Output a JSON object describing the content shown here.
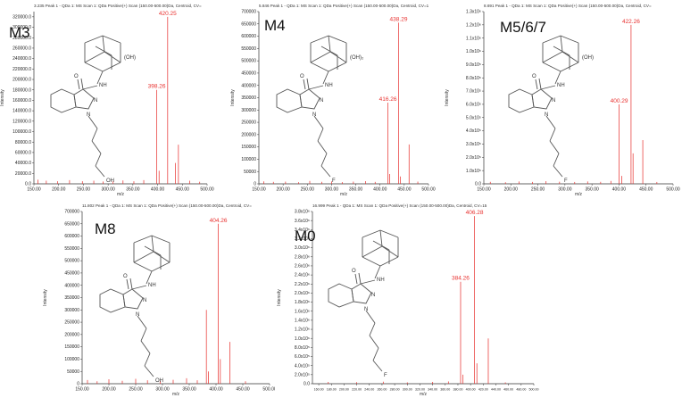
{
  "chart_data": [
    {
      "id": "p1",
      "type": "bar",
      "title": "3.235 Peak 1 - QDa 1: MS Scan 1: QDa Positive(+) Scan (150.00-500.00)Da, Centroid, CV=",
      "compound_label": "M3",
      "ylabel": "Intensity",
      "xlabel": "m/z",
      "xlim": [
        150,
        500
      ],
      "ylim": [
        0,
        330000
      ],
      "xticks": [
        150,
        200,
        250,
        300,
        350,
        400,
        450,
        500
      ],
      "xtick_labels": [
        "150.00",
        "200.00",
        "250.00",
        "300.00",
        "350.00",
        "400.00",
        "450.00",
        "500.00"
      ],
      "yticks": [
        0,
        20000,
        40000,
        60000,
        80000,
        100000,
        120000,
        140000,
        160000,
        180000,
        200000,
        220000,
        240000,
        260000,
        280000,
        300000,
        320000
      ],
      "ytick_labels": [
        "0.0",
        "20000.0",
        "40000.0",
        "60000.0",
        "80000.0",
        "100000.0",
        "120000.0",
        "140000.0",
        "160000.0",
        "180000.0",
        "200000.0",
        "220000.0",
        "240000.0",
        "260000.0",
        "280000.0",
        "300000.0",
        "320000.0"
      ],
      "substituents": [
        "(OH)",
        "OH"
      ],
      "peaks": [
        {
          "mz": 420.25,
          "intensity": 320000,
          "label": "420.25"
        },
        {
          "mz": 398.26,
          "intensity": 180000,
          "label": "398.26"
        },
        {
          "mz": 442,
          "intensity": 75000
        },
        {
          "mz": 436,
          "intensity": 40000
        },
        {
          "mz": 403,
          "intensity": 25000
        },
        {
          "mz": 158,
          "intensity": 8000
        },
        {
          "mz": 175,
          "intensity": 6000
        },
        {
          "mz": 198,
          "intensity": 5000
        },
        {
          "mz": 222,
          "intensity": 7000
        },
        {
          "mz": 248,
          "intensity": 5000
        },
        {
          "mz": 271,
          "intensity": 6000
        },
        {
          "mz": 290,
          "intensity": 4500
        },
        {
          "mz": 310,
          "intensity": 5000
        },
        {
          "mz": 330,
          "intensity": 6500
        },
        {
          "mz": 352,
          "intensity": 5000
        },
        {
          "mz": 372,
          "intensity": 7000
        },
        {
          "mz": 465,
          "intensity": 6000
        },
        {
          "mz": 485,
          "intensity": 4000
        }
      ]
    },
    {
      "id": "p2",
      "type": "bar",
      "title": "5.846 Peak 1 - QDa 1: MS Scan 1: QDa Positive(+) Scan (150.00-500.00)Da, Centroid, CV=1",
      "compound_label": "M4",
      "ylabel": "Intensity",
      "xlabel": "m/z",
      "xlim": [
        150,
        500
      ],
      "ylim": [
        0,
        700000
      ],
      "xticks": [
        150,
        200,
        250,
        300,
        350,
        400,
        450,
        500
      ],
      "xtick_labels": [
        "150.00",
        "200.00",
        "250.00",
        "300.00",
        "350.00",
        "400.00",
        "450.00",
        "500.00"
      ],
      "yticks": [
        0,
        50000,
        100000,
        150000,
        200000,
        250000,
        300000,
        350000,
        400000,
        450000,
        500000,
        550000,
        600000,
        650000,
        700000
      ],
      "ytick_labels": [
        "0",
        "50000",
        "100000",
        "150000",
        "200000",
        "250000",
        "300000",
        "350000",
        "400000",
        "450000",
        "500000",
        "550000",
        "600000",
        "650000",
        "700000"
      ],
      "substituents": [
        "(OH)₂",
        "F"
      ],
      "peaks": [
        {
          "mz": 438.29,
          "intensity": 655000,
          "label": "438.29"
        },
        {
          "mz": 416.26,
          "intensity": 330000,
          "label": "416.26"
        },
        {
          "mz": 460,
          "intensity": 160000
        },
        {
          "mz": 420,
          "intensity": 40000
        },
        {
          "mz": 442,
          "intensity": 30000
        },
        {
          "mz": 160,
          "intensity": 10000
        },
        {
          "mz": 180,
          "intensity": 8000
        },
        {
          "mz": 205,
          "intensity": 9000
        },
        {
          "mz": 232,
          "intensity": 7000
        },
        {
          "mz": 255,
          "intensity": 12000
        },
        {
          "mz": 280,
          "intensity": 8000
        },
        {
          "mz": 300,
          "intensity": 10000
        },
        {
          "mz": 322,
          "intensity": 7000
        },
        {
          "mz": 345,
          "intensity": 9000
        },
        {
          "mz": 370,
          "intensity": 11000
        },
        {
          "mz": 390,
          "intensity": 8000
        },
        {
          "mz": 478,
          "intensity": 9000
        }
      ]
    },
    {
      "id": "p3",
      "type": "bar",
      "title": "8.691 Peak 1 - QDa 1: MS Scan 1: QDa Positive(+) Scan (150.00-500.00)Da, Centroid, CV=",
      "compound_label": "M5/6/7",
      "ylabel": "Intensity",
      "xlabel": "m/z",
      "xlim": [
        150,
        500
      ],
      "ylim": [
        0,
        1300000
      ],
      "xticks": [
        150,
        200,
        250,
        300,
        350,
        400,
        450,
        500
      ],
      "xtick_labels": [
        "150.00",
        "200.00",
        "250.00",
        "300.00",
        "350.00",
        "400.00",
        "450.00",
        "500.00"
      ],
      "yticks": [
        0,
        100000,
        200000,
        300000,
        400000,
        500000,
        600000,
        700000,
        800000,
        900000,
        1000000,
        1100000,
        1200000,
        1300000
      ],
      "ytick_labels": [
        "0.0",
        "1.0x10⁵",
        "2.0x10⁵",
        "3.0x10⁵",
        "4.0x10⁵",
        "5.0x10⁵",
        "6.0x10⁵",
        "7.0x10⁵",
        "8.0x10⁵",
        "9.0x10⁵",
        "1.0x10⁶",
        "1.1x10⁶",
        "1.2x10⁶",
        "1.3x10⁶"
      ],
      "substituents": [
        "(OH)",
        "F"
      ],
      "peaks": [
        {
          "mz": 422.26,
          "intensity": 1200000,
          "label": "422.26"
        },
        {
          "mz": 400.29,
          "intensity": 600000,
          "label": "400.29"
        },
        {
          "mz": 444,
          "intensity": 330000
        },
        {
          "mz": 426,
          "intensity": 230000
        },
        {
          "mz": 405,
          "intensity": 60000
        },
        {
          "mz": 162,
          "intensity": 15000
        },
        {
          "mz": 190,
          "intensity": 12000
        },
        {
          "mz": 215,
          "intensity": 18000
        },
        {
          "mz": 240,
          "intensity": 14000
        },
        {
          "mz": 265,
          "intensity": 20000
        },
        {
          "mz": 290,
          "intensity": 16000
        },
        {
          "mz": 318,
          "intensity": 14000
        },
        {
          "mz": 342,
          "intensity": 18000
        },
        {
          "mz": 366,
          "intensity": 15000
        },
        {
          "mz": 385,
          "intensity": 22000
        },
        {
          "mz": 470,
          "intensity": 14000
        }
      ]
    },
    {
      "id": "p4",
      "type": "bar",
      "title": "11.802 Peak 1 - QDa 1: MS Scan 1: QDa Positive(+) Scan (150.00-500.00)Da, Centroid, CV=",
      "compound_label": "M8",
      "ylabel": "Intensity",
      "xlabel": "m/z",
      "xlim": [
        150,
        500
      ],
      "ylim": [
        0,
        700000
      ],
      "xticks": [
        150,
        200,
        250,
        300,
        350,
        400,
        450,
        500
      ],
      "xtick_labels": [
        "150.00",
        "200.00",
        "250.00",
        "300.00",
        "350.00",
        "400.00",
        "450.00",
        "500.00"
      ],
      "yticks": [
        0,
        50000,
        100000,
        150000,
        200000,
        250000,
        300000,
        350000,
        400000,
        450000,
        500000,
        550000,
        600000,
        650000,
        700000
      ],
      "ytick_labels": [
        "0",
        "50000",
        "100000",
        "150000",
        "200000",
        "250000",
        "300000",
        "350000",
        "400000",
        "450000",
        "500000",
        "550000",
        "600000",
        "650000",
        "700000"
      ],
      "substituents": [
        "OH"
      ],
      "peaks": [
        {
          "mz": 404.26,
          "intensity": 650000,
          "label": "404.26"
        },
        {
          "mz": 382,
          "intensity": 300000
        },
        {
          "mz": 426,
          "intensity": 170000
        },
        {
          "mz": 408,
          "intensity": 100000
        },
        {
          "mz": 386,
          "intensity": 50000
        },
        {
          "mz": 160,
          "intensity": 15000
        },
        {
          "mz": 178,
          "intensity": 10000
        },
        {
          "mz": 200,
          "intensity": 18000
        },
        {
          "mz": 225,
          "intensity": 12000
        },
        {
          "mz": 250,
          "intensity": 20000
        },
        {
          "mz": 272,
          "intensity": 14000
        },
        {
          "mz": 296,
          "intensity": 12000
        },
        {
          "mz": 320,
          "intensity": 16000
        },
        {
          "mz": 345,
          "intensity": 22000
        },
        {
          "mz": 365,
          "intensity": 14000
        },
        {
          "mz": 455,
          "intensity": 10000
        }
      ]
    },
    {
      "id": "p5",
      "type": "bar",
      "title": "16.999 Peak 1 - QDa 1: MS Scan 1: QDa Positive(+) Scan (150.00-500.00)Da, Centroid, CV=15",
      "compound_label": "M0",
      "ylabel": "Intensity",
      "xlabel": "m/z",
      "xlim": [
        150,
        500
      ],
      "ylim": [
        0,
        3800000
      ],
      "xticks": [
        160,
        180,
        200,
        220,
        240,
        260,
        280,
        300,
        320,
        340,
        360,
        380,
        400,
        420,
        440,
        460,
        480,
        500
      ],
      "xtick_labels": [
        "160.00",
        "180.00",
        "200.00",
        "220.00",
        "240.00",
        "260.00",
        "280.00",
        "300.00",
        "320.00",
        "340.00",
        "360.00",
        "380.00",
        "400.00",
        "420.00",
        "440.00",
        "460.00",
        "480.00",
        "500.00"
      ],
      "yticks": [
        0,
        200000,
        400000,
        600000,
        800000,
        1000000,
        1200000,
        1400000,
        1600000,
        1800000,
        2000000,
        2200000,
        2400000,
        2600000,
        2800000,
        3000000,
        3200000,
        3400000,
        3600000,
        3800000
      ],
      "ytick_labels": [
        "0.0",
        "2.0x10⁵",
        "4.0x10⁵",
        "6.0x10⁵",
        "8.0x10⁵",
        "1.0x10⁶",
        "1.2x10⁶",
        "1.4x10⁶",
        "1.6x10⁶",
        "1.8x10⁶",
        "2.0x10⁶",
        "2.2x10⁶",
        "2.4x10⁶",
        "2.6x10⁶",
        "2.8x10⁶",
        "3.0x10⁶",
        "3.2x10⁶",
        "3.4x10⁶",
        "3.6x10⁶",
        "3.8x10⁶"
      ],
      "substituents": [
        "F"
      ],
      "peaks": [
        {
          "mz": 406.28,
          "intensity": 3700000,
          "label": "406.28"
        },
        {
          "mz": 384.26,
          "intensity": 2250000,
          "label": "384.26"
        },
        {
          "mz": 428,
          "intensity": 1000000
        },
        {
          "mz": 410,
          "intensity": 450000
        },
        {
          "mz": 388,
          "intensity": 200000
        },
        {
          "mz": 175,
          "intensity": 40000
        },
        {
          "mz": 220,
          "intensity": 35000
        },
        {
          "mz": 262,
          "intensity": 45000
        },
        {
          "mz": 300,
          "intensity": 30000
        },
        {
          "mz": 340,
          "intensity": 40000
        },
        {
          "mz": 365,
          "intensity": 50000
        },
        {
          "mz": 455,
          "intensity": 30000
        }
      ]
    }
  ]
}
